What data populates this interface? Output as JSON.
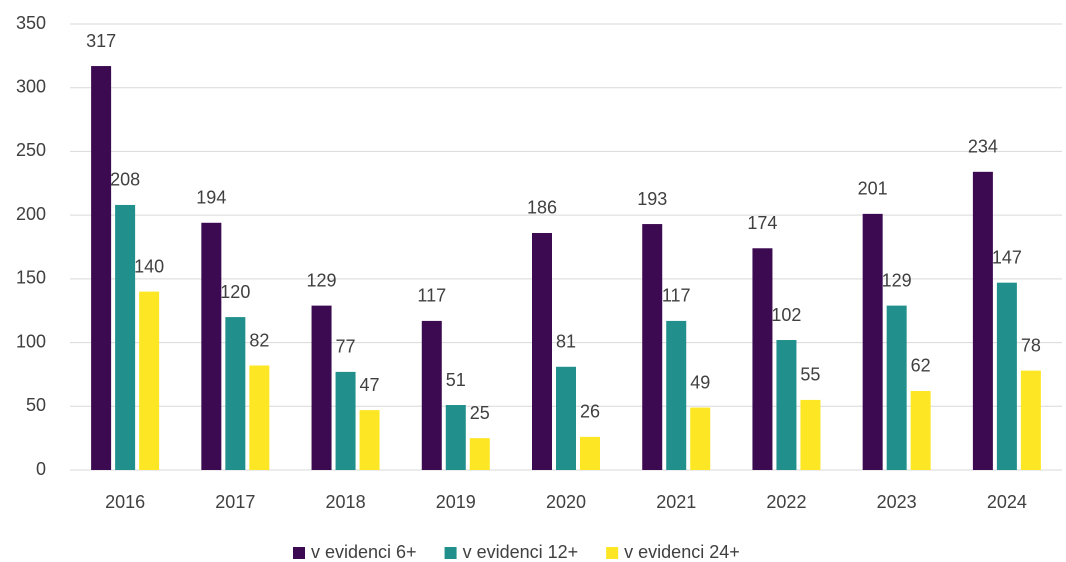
{
  "chart_data": {
    "type": "bar",
    "categories": [
      "2016",
      "2017",
      "2018",
      "2019",
      "2020",
      "2021",
      "2022",
      "2023",
      "2024"
    ],
    "series": [
      {
        "name": "v evidenci 6+",
        "color": "#3b0a50",
        "values": [
          317,
          194,
          129,
          117,
          186,
          193,
          174,
          201,
          234
        ]
      },
      {
        "name": "v evidenci 12+",
        "color": "#21908c",
        "values": [
          208,
          120,
          77,
          51,
          81,
          117,
          102,
          129,
          147
        ]
      },
      {
        "name": "v evidenci 24+",
        "color": "#fde725",
        "values": [
          140,
          82,
          47,
          25,
          26,
          49,
          55,
          62,
          78
        ]
      }
    ],
    "ylim": [
      0,
      350
    ],
    "yticks": [
      0,
      50,
      100,
      150,
      200,
      250,
      300,
      350
    ],
    "grid": true,
    "legend": "bottom"
  }
}
